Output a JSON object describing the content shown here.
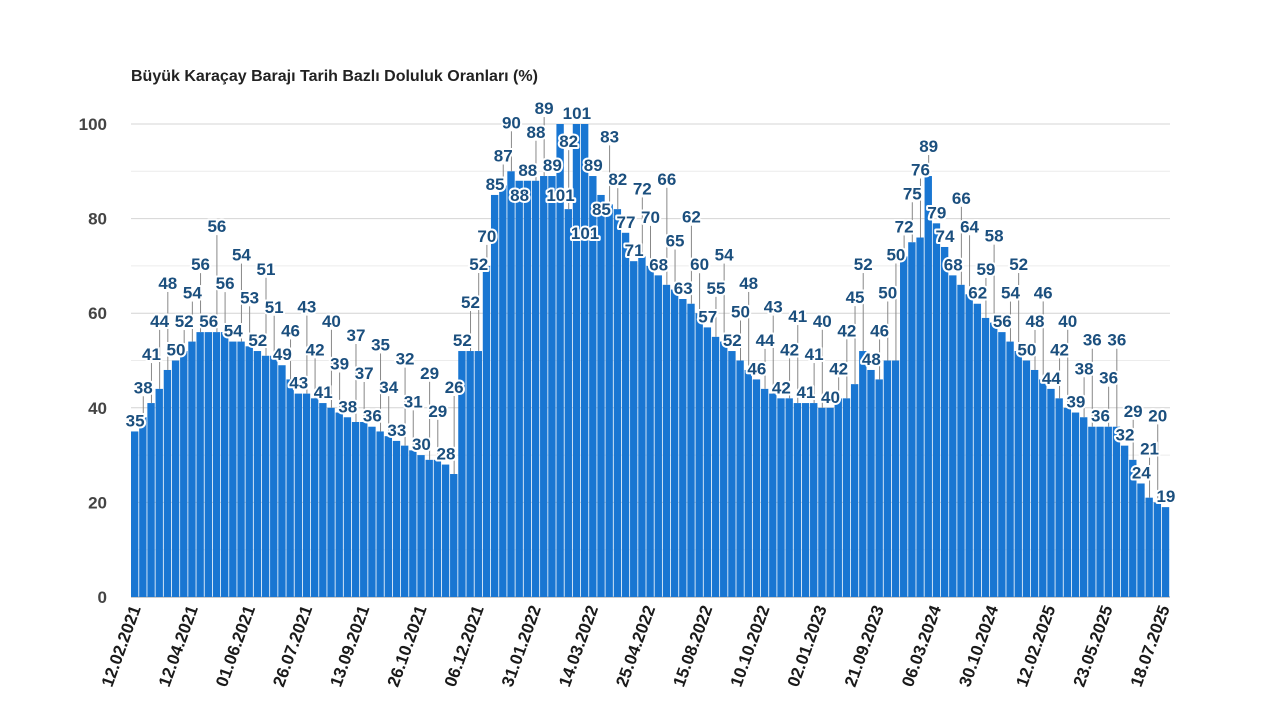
{
  "chart_data": {
    "type": "bar",
    "title": "Büyük Karaçay Barajı Tarih Bazlı Doluluk Oranları (%)",
    "xlabel": "",
    "ylabel": "",
    "ylim": [
      0,
      100
    ],
    "yticks": [
      "0",
      "20",
      "40",
      "60",
      "80",
      "100"
    ],
    "ytick_values": [
      0,
      20,
      40,
      60,
      80,
      100
    ],
    "grid": true,
    "bar_color": "#1976d2",
    "label_color": "#1b4f7e",
    "x_tick_labels": [
      "12.02.2021",
      "12.04.2021",
      "01.06.2021",
      "26.07.2021",
      "13.09.2021",
      "26.10.2021",
      "06.12.2021",
      "31.01.2022",
      "14.03.2022",
      "25.04.2022",
      "15.08.2022",
      "10.10.2022",
      "02.01.2023",
      "21.09.2023",
      "06.03.2024",
      "30.10.2024",
      "12.02.2025",
      "23.05.2025",
      "18.07.2025"
    ],
    "values": [
      35,
      38,
      41,
      44,
      48,
      50,
      52,
      54,
      56,
      56,
      56,
      56,
      54,
      54,
      53,
      52,
      51,
      51,
      49,
      46,
      43,
      43,
      42,
      41,
      40,
      39,
      38,
      37,
      37,
      36,
      35,
      34,
      33,
      32,
      31,
      30,
      29,
      29,
      28,
      26,
      52,
      52,
      52,
      70,
      85,
      87,
      90,
      88,
      88,
      88,
      89,
      89,
      101,
      82,
      101,
      101,
      89,
      85,
      83,
      82,
      77,
      71,
      72,
      70,
      68,
      66,
      65,
      63,
      62,
      60,
      57,
      55,
      54,
      52,
      50,
      48,
      46,
      44,
      43,
      42,
      42,
      41,
      41,
      41,
      40,
      40,
      42,
      42,
      45,
      52,
      48,
      46,
      50,
      50,
      72,
      75,
      76,
      89,
      79,
      74,
      68,
      66,
      64,
      62,
      59,
      58,
      56,
      54,
      52,
      50,
      48,
      46,
      44,
      42,
      40,
      39,
      38,
      36,
      36,
      36,
      36,
      32,
      29,
      24,
      21,
      20,
      19
    ]
  }
}
